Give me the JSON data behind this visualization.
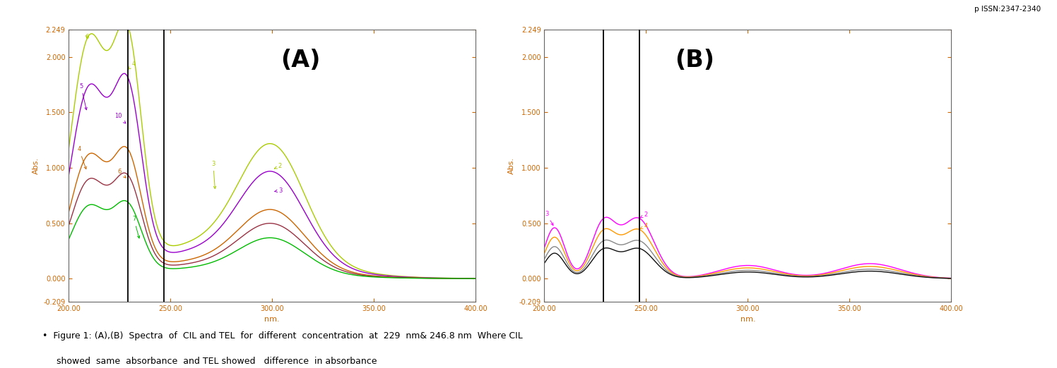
{
  "title_A": "(A)",
  "title_B": "(B)",
  "xlabel": "nm.",
  "ylabel_A": "Abs.",
  "ylabel_B": "Abs.",
  "xlim": [
    200,
    400
  ],
  "ylim": [
    -0.209,
    2.249
  ],
  "yticks": [
    -0.209,
    0.0,
    0.5,
    1.0,
    1.5,
    2.0,
    2.249
  ],
  "xticks": [
    200.0,
    250.0,
    300.0,
    350.0,
    400.0
  ],
  "vlines_A": [
    229,
    246.8
  ],
  "vlines_B": [
    229,
    246.8
  ],
  "pissn": "p ISSN:2347-2340",
  "caption_line1": "•  Figure 1: (A),(B)  Spectra  of  CIL and TEL  for  different  concentration  at  229  nm& 246.8 nm  Where CIL",
  "caption_line2": "     showed  same  absorbance  and TEL showed   difference  in absorbance",
  "colors_A": [
    "#aacc00",
    "#9900cc",
    "#cc6600",
    "#cc0066",
    "#00bb00"
  ],
  "colors_B": [
    "#ff00ff",
    "#ff9900",
    "#888888",
    "#000000"
  ]
}
